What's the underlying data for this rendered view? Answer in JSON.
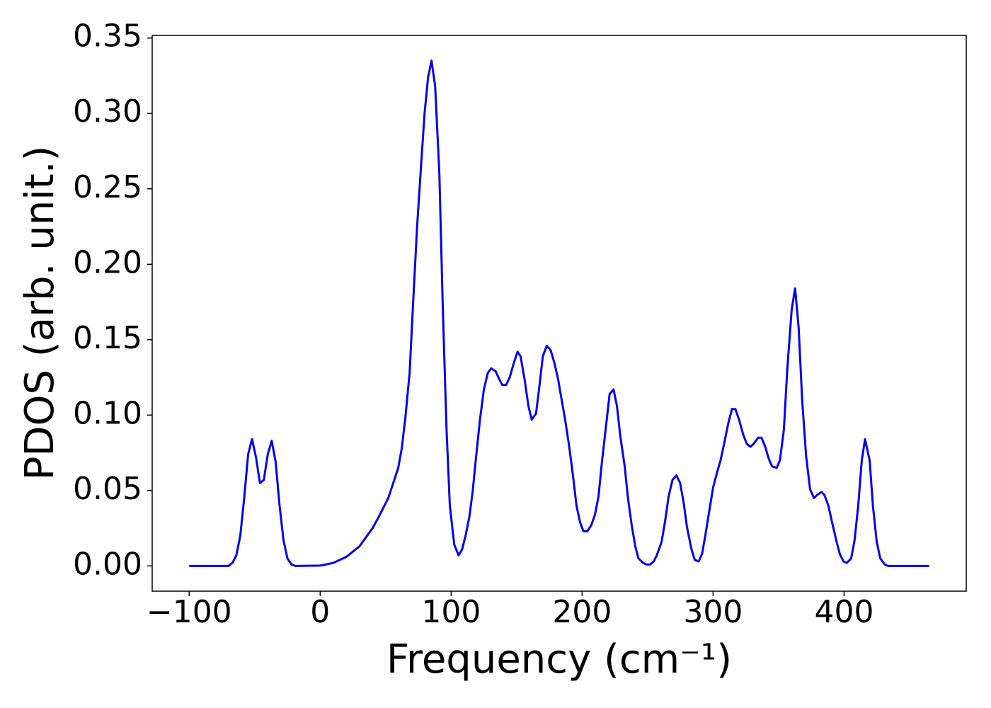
{
  "chart_data": {
    "type": "line",
    "xlabel": "Frequency (cm⁻¹)",
    "ylabel": "PDOS (arb. unit.)",
    "x": [
      -100,
      -70,
      -67,
      -64,
      -61,
      -58,
      -55,
      -52,
      -49,
      -46,
      -43,
      -40,
      -37,
      -34,
      -31,
      -28,
      -25,
      -22,
      -19,
      0,
      10,
      20,
      30,
      40,
      45,
      52,
      59.6,
      62.3,
      65,
      68.3,
      71,
      74,
      77,
      79.7,
      82.4,
      85,
      87.8,
      91,
      93.5,
      96.5,
      99,
      102.4,
      105.7,
      108.4,
      111,
      114,
      116.5,
      119,
      122,
      125,
      128,
      130.6,
      134,
      136.6,
      139,
      142,
      144.7,
      148,
      150.7,
      153,
      156,
      159,
      161.5,
      164.8,
      167.5,
      170,
      173,
      176,
      179,
      181.6,
      184,
      187,
      190,
      193,
      195.7,
      198.4,
      201,
      204,
      207,
      209.8,
      212.5,
      215,
      218.4,
      221,
      224,
      226.6,
      229,
      232.5,
      235,
      238,
      240.6,
      243,
      246.6,
      249,
      252,
      254.7,
      257,
      260.7,
      263.4,
      266,
      269,
      272,
      274.8,
      277.5,
      280,
      283.5,
      286,
      289,
      291.6,
      294,
      297,
      300,
      303,
      305.7,
      308.4,
      311.7,
      314.4,
      317,
      319.8,
      323,
      325.7,
      328.5,
      331,
      334.4,
      337,
      339.8,
      342.5,
      345,
      348.5,
      351,
      354,
      356.6,
      360,
      362.6,
      365.3,
      368,
      371,
      374,
      377,
      379.4,
      382.7,
      385,
      388,
      390.8,
      394,
      396.7,
      399.5,
      402,
      405.4,
      408,
      410.8,
      413.5,
      416,
      419.5,
      422,
      424.9,
      427.6,
      431,
      433.6,
      465
    ],
    "series": [
      {
        "color": "#0000ee",
        "values": [
          0,
          0,
          0.002,
          0.007,
          0.02,
          0.045,
          0.074,
          0.084,
          0.072,
          0.055,
          0.057,
          0.074,
          0.083,
          0.069,
          0.04,
          0.017,
          0.005,
          0.001,
          0,
          0.0002,
          0.002,
          0.006,
          0.013,
          0.025,
          0.033,
          0.045,
          0.065,
          0.078,
          0.098,
          0.128,
          0.175,
          0.225,
          0.265,
          0.3,
          0.324,
          0.335,
          0.318,
          0.26,
          0.175,
          0.09,
          0.04,
          0.014,
          0.007,
          0.011,
          0.02,
          0.033,
          0.05,
          0.072,
          0.097,
          0.117,
          0.128,
          0.131,
          0.129,
          0.124,
          0.12,
          0.12,
          0.125,
          0.135,
          0.142,
          0.139,
          0.124,
          0.106,
          0.097,
          0.101,
          0.12,
          0.139,
          0.146,
          0.143,
          0.134,
          0.124,
          0.112,
          0.097,
          0.08,
          0.06,
          0.04,
          0.029,
          0.023,
          0.023,
          0.027,
          0.034,
          0.046,
          0.068,
          0.094,
          0.114,
          0.117,
          0.106,
          0.087,
          0.066,
          0.045,
          0.026,
          0.013,
          0.005,
          0.002,
          0.001,
          0.001,
          0.003,
          0.007,
          0.016,
          0.03,
          0.046,
          0.057,
          0.06,
          0.055,
          0.042,
          0.026,
          0.011,
          0.004,
          0.003,
          0.008,
          0.02,
          0.036,
          0.052,
          0.062,
          0.07,
          0.081,
          0.095,
          0.104,
          0.104,
          0.097,
          0.087,
          0.081,
          0.079,
          0.081,
          0.085,
          0.085,
          0.079,
          0.071,
          0.066,
          0.065,
          0.07,
          0.09,
          0.13,
          0.17,
          0.184,
          0.158,
          0.11,
          0.073,
          0.051,
          0.045,
          0.047,
          0.049,
          0.047,
          0.04,
          0.029,
          0.017,
          0.008,
          0.003,
          0.002,
          0.005,
          0.017,
          0.04,
          0.07,
          0.084,
          0.07,
          0.04,
          0.016,
          0.005,
          0.001,
          0,
          0
        ]
      }
    ],
    "xlim": [
      -128.25,
      493.25
    ],
    "ylim": [
      -0.01675,
      0.35175
    ],
    "xticks": [
      {
        "value": -100,
        "label": "−100"
      },
      0,
      100,
      200,
      300,
      400
    ],
    "yticks": [
      {
        "value": 0,
        "label": "0.00"
      },
      0.05,
      {
        "value": 0.1,
        "label": "0.10"
      },
      0.15,
      {
        "value": 0.2,
        "label": "0.20"
      },
      0.25,
      {
        "value": 0.3,
        "label": "0.30"
      },
      0.35
    ]
  }
}
